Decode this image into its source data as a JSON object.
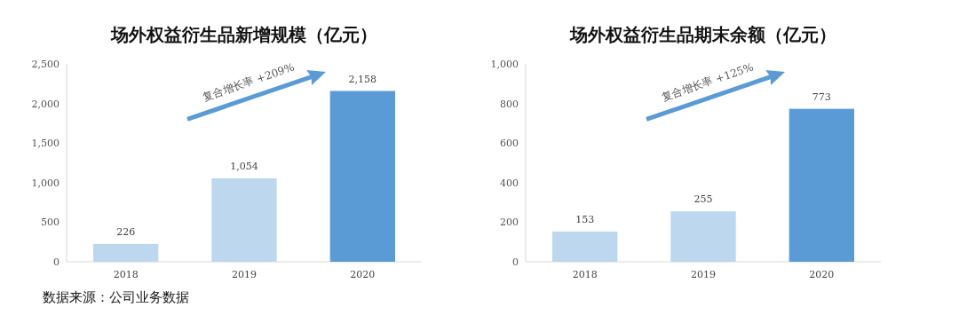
{
  "chart_data": [
    {
      "type": "bar",
      "title": "场外权益衍生品新增规模（亿元）",
      "categories": [
        "2018",
        "2019",
        "2020"
      ],
      "values": [
        226,
        1054,
        2158
      ],
      "colors": [
        "#bdd7ee",
        "#bdd7ee",
        "#5b9bd5"
      ],
      "value_labels": [
        "226",
        "1,054",
        "2,158"
      ],
      "ylim": [
        0,
        2500
      ],
      "yticks": [
        0,
        500,
        {
          "value": 1000,
          "label": "1,000"
        },
        {
          "value": 1500,
          "label": "1,500"
        },
        {
          "value": 2000,
          "label": "2,000"
        },
        {
          "value": 2500,
          "label": "2,500"
        }
      ],
      "annotations": [
        "复合增长率 +209%",
        "数据来源：公司业务数据"
      ]
    },
    {
      "type": "bar",
      "title": "场外权益衍生品期末余额（亿元）",
      "categories": [
        "2018",
        "2019",
        "2020"
      ],
      "values": [
        153,
        255,
        773
      ],
      "colors": [
        "#bdd7ee",
        "#bdd7ee",
        "#5b9bd5"
      ],
      "value_labels": [
        "153",
        "255",
        "773"
      ],
      "ylim": [
        0,
        1000
      ],
      "yticks": [
        0,
        200,
        400,
        600,
        800,
        {
          "value": 1000,
          "label": "1,000"
        }
      ],
      "annotations": [
        "复合增长率 +125%"
      ]
    }
  ]
}
